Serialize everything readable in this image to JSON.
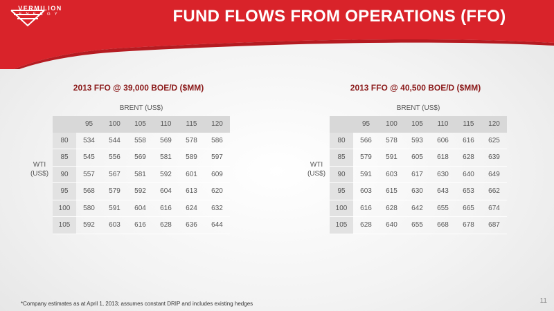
{
  "brand": {
    "name": "VERMILION",
    "sub": "ENERGY",
    "color": "#d9232a"
  },
  "title": "FUND FLOWS FROM OPERATIONS (FFO)",
  "tables": [
    {
      "title": "2013 FFO @ 39,000 BOE/D ($MM)",
      "col_axis_label": "BRENT (US$)",
      "row_axis_label_line1": "WTI",
      "row_axis_label_line2": "(US$)",
      "columns": [
        "95",
        "100",
        "105",
        "110",
        "115",
        "120"
      ],
      "rows": [
        {
          "label": "80",
          "cells": [
            "534",
            "544",
            "558",
            "569",
            "578",
            "586"
          ]
        },
        {
          "label": "85",
          "cells": [
            "545",
            "556",
            "569",
            "581",
            "589",
            "597"
          ]
        },
        {
          "label": "90",
          "cells": [
            "557",
            "567",
            "581",
            "592",
            "601",
            "609"
          ]
        },
        {
          "label": "95",
          "cells": [
            "568",
            "579",
            "592",
            "604",
            "613",
            "620"
          ]
        },
        {
          "label": "100",
          "cells": [
            "580",
            "591",
            "604",
            "616",
            "624",
            "632"
          ]
        },
        {
          "label": "105",
          "cells": [
            "592",
            "603",
            "616",
            "628",
            "636",
            "644"
          ]
        }
      ]
    },
    {
      "title": "2013 FFO @ 40,500 BOE/D ($MM)",
      "col_axis_label": "BRENT (US$)",
      "row_axis_label_line1": "WTI",
      "row_axis_label_line2": "(US$)",
      "columns": [
        "95",
        "100",
        "105",
        "110",
        "115",
        "120"
      ],
      "rows": [
        {
          "label": "80",
          "cells": [
            "566",
            "578",
            "593",
            "606",
            "616",
            "625"
          ]
        },
        {
          "label": "85",
          "cells": [
            "579",
            "591",
            "605",
            "618",
            "628",
            "639"
          ]
        },
        {
          "label": "90",
          "cells": [
            "591",
            "603",
            "617",
            "630",
            "640",
            "649"
          ]
        },
        {
          "label": "95",
          "cells": [
            "603",
            "615",
            "630",
            "643",
            "653",
            "662"
          ]
        },
        {
          "label": "100",
          "cells": [
            "616",
            "628",
            "642",
            "655",
            "665",
            "674"
          ]
        },
        {
          "label": "105",
          "cells": [
            "628",
            "640",
            "655",
            "668",
            "678",
            "687"
          ]
        }
      ]
    }
  ],
  "footnote": "*Company estimates as at April 1, 2013; assumes constant DRIP and includes existing hedges",
  "page_number": "11"
}
